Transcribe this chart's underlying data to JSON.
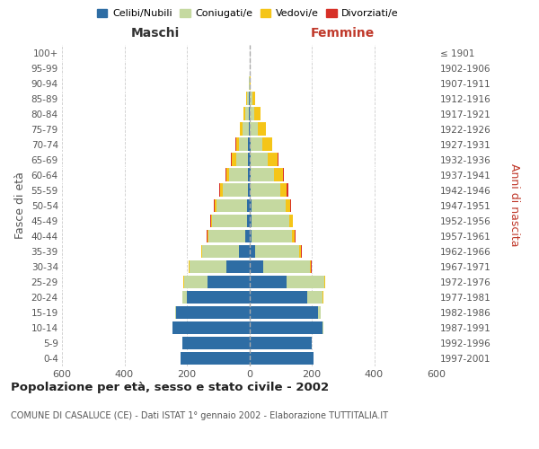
{
  "age_groups": [
    "0-4",
    "5-9",
    "10-14",
    "15-19",
    "20-24",
    "25-29",
    "30-34",
    "35-39",
    "40-44",
    "45-49",
    "50-54",
    "55-59",
    "60-64",
    "65-69",
    "70-74",
    "75-79",
    "80-84",
    "85-89",
    "90-94",
    "95-99",
    "100+"
  ],
  "birth_years": [
    "1997-2001",
    "1992-1996",
    "1987-1991",
    "1982-1986",
    "1977-1981",
    "1972-1976",
    "1967-1971",
    "1962-1966",
    "1957-1961",
    "1952-1956",
    "1947-1951",
    "1942-1946",
    "1937-1941",
    "1932-1936",
    "1927-1931",
    "1922-1926",
    "1917-1921",
    "1912-1916",
    "1907-1911",
    "1902-1906",
    "≤ 1901"
  ],
  "males": {
    "celibe": [
      220,
      215,
      245,
      235,
      200,
      135,
      72,
      32,
      12,
      8,
      6,
      5,
      4,
      3,
      3,
      2,
      2,
      2,
      0,
      0,
      0
    ],
    "coniugato": [
      0,
      0,
      1,
      3,
      15,
      75,
      120,
      120,
      120,
      110,
      100,
      80,
      60,
      40,
      30,
      20,
      12,
      6,
      1,
      0,
      0
    ],
    "vedovo": [
      0,
      0,
      0,
      0,
      0,
      1,
      1,
      2,
      3,
      4,
      5,
      8,
      10,
      12,
      10,
      8,
      5,
      3,
      0,
      0,
      0
    ],
    "divorziato": [
      0,
      0,
      0,
      0,
      0,
      1,
      1,
      1,
      2,
      2,
      2,
      3,
      3,
      3,
      2,
      1,
      0,
      0,
      0,
      0,
      0
    ]
  },
  "females": {
    "nubile": [
      205,
      200,
      235,
      220,
      185,
      120,
      45,
      20,
      8,
      7,
      6,
      5,
      4,
      3,
      3,
      2,
      2,
      1,
      0,
      0,
      0
    ],
    "coniugata": [
      0,
      0,
      2,
      10,
      50,
      120,
      150,
      140,
      130,
      120,
      110,
      95,
      75,
      55,
      40,
      25,
      15,
      8,
      2,
      1,
      0
    ],
    "vedova": [
      0,
      0,
      0,
      0,
      1,
      2,
      3,
      5,
      8,
      12,
      15,
      20,
      28,
      32,
      30,
      25,
      18,
      10,
      2,
      1,
      0
    ],
    "divorziata": [
      0,
      0,
      0,
      0,
      0,
      1,
      1,
      2,
      2,
      2,
      3,
      4,
      4,
      3,
      1,
      1,
      0,
      0,
      0,
      0,
      0
    ]
  },
  "colors": {
    "celibe": "#2e6da4",
    "coniugato": "#c5d9a0",
    "vedovo": "#f5c518",
    "divorziato": "#d73027"
  },
  "xlim": 600,
  "title": "Popolazione per età, sesso e stato civile - 2002",
  "subtitle": "COMUNE DI CASALUCE (CE) - Dati ISTAT 1° gennaio 2002 - Elaborazione TUTTITALIA.IT",
  "ylabel_left": "Fasce di età",
  "ylabel_right": "Anni di nascita",
  "xlabel_maschi": "Maschi",
  "xlabel_femmine": "Femmine",
  "legend_labels": [
    "Celibi/Nubili",
    "Coniugati/e",
    "Vedovi/e",
    "Divorziati/e"
  ],
  "background_color": "#ffffff",
  "grid_color": "#cccccc"
}
